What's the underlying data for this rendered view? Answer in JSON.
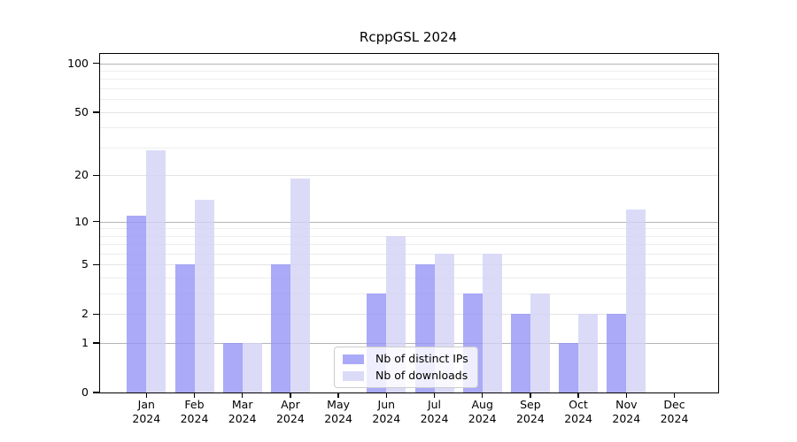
{
  "chart_data": {
    "type": "bar",
    "title": "RcppGSL 2024",
    "categories": [
      "Jan",
      "Feb",
      "Mar",
      "Apr",
      "May",
      "Jun",
      "Jul",
      "Aug",
      "Sep",
      "Oct",
      "Nov",
      "Dec"
    ],
    "year": "2024",
    "series": [
      {
        "name": "Nb of distinct IPs",
        "color": "#aaaaf8",
        "fill": "rgba(149,149,246,0.8)",
        "values": [
          11,
          5,
          1,
          5,
          0,
          3,
          5,
          3,
          2,
          1,
          2,
          0
        ]
      },
      {
        "name": "Nb of downloads",
        "color": "#dbdbf8",
        "fill": "rgba(210,210,246,0.8)",
        "values": [
          29,
          14,
          1,
          19,
          0,
          8,
          6,
          6,
          3,
          2,
          12,
          0
        ]
      }
    ],
    "y_scale": "log10(1+v)",
    "y_ticks": [
      0,
      1,
      2,
      5,
      10,
      20,
      50,
      100
    ],
    "y_decade_ticks": [
      1,
      10,
      100
    ],
    "y_minor_gridlines": [
      3,
      4,
      6,
      7,
      8,
      9,
      30,
      40,
      60,
      70,
      80,
      90
    ],
    "ylim_top_value": 115,
    "xlabel": "",
    "ylabel": "",
    "grid": "on",
    "legend_position": "bottom-center"
  }
}
